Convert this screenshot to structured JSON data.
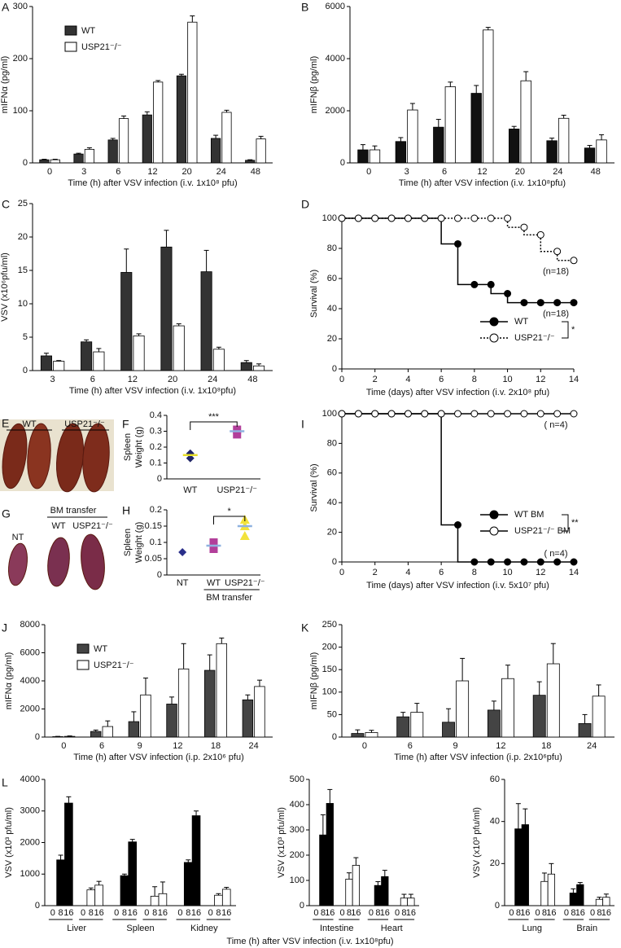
{
  "chart_data": [
    {
      "type": "bar",
      "panel": "A",
      "ylabel": "mIFNα (pg/ml)",
      "xlabel": "Time (h) after VSV infection (i.v. 1x10⁸ pfu)",
      "categories": [
        "0",
        "3",
        "6",
        "12",
        "20",
        "24",
        "48"
      ],
      "ylim": [
        0,
        300
      ],
      "yticks": [
        0,
        100,
        200,
        300
      ],
      "legend": "upper-left",
      "series": [
        {
          "name": "WT",
          "color": "#333333",
          "values": [
            6,
            17,
            44,
            92,
            167,
            47,
            5
          ],
          "errors": [
            1,
            1.5,
            3,
            6,
            3,
            6,
            1
          ]
        },
        {
          "name": "USP21⁻/⁻",
          "color": "#ffffff",
          "values": [
            6,
            26,
            85,
            155,
            270,
            97,
            46
          ],
          "errors": [
            1,
            3,
            5,
            3,
            12,
            4,
            5
          ]
        }
      ]
    },
    {
      "type": "bar",
      "panel": "B",
      "ylabel": "mIFNβ (pg/ml)",
      "xlabel": "Time (h) after VSV infection (i.v. 1x10⁸pfu)",
      "categories": [
        "0",
        "3",
        "6",
        "12",
        "20",
        "24",
        "48"
      ],
      "ylim": [
        0,
        6000
      ],
      "yticks": [
        0,
        2000,
        4000,
        6000
      ],
      "series": [
        {
          "color": "#111111",
          "values": [
            500,
            820,
            1370,
            2670,
            1300,
            850,
            570
          ],
          "errors": [
            200,
            150,
            300,
            300,
            100,
            100,
            100
          ]
        },
        {
          "color": "#ffffff",
          "values": [
            500,
            2030,
            2920,
            5100,
            3150,
            1710,
            880
          ],
          "errors": [
            150,
            250,
            180,
            100,
            350,
            120,
            200
          ]
        }
      ]
    },
    {
      "type": "bar",
      "panel": "C",
      "ylabel": "VSV (x10⁶pfu/ml)",
      "xlabel": "Time (h) after VSV infection (i.v. 1x10⁸pfu)",
      "categories": [
        "3",
        "6",
        "12",
        "20",
        "24",
        "48"
      ],
      "ylim": [
        0,
        25
      ],
      "yticks": [
        0,
        5,
        10,
        15,
        20,
        25
      ],
      "series": [
        {
          "color": "#333333",
          "values": [
            2.2,
            4.3,
            14.7,
            18.5,
            14.8,
            1.2
          ],
          "errors": [
            0.4,
            0.3,
            3.5,
            2.5,
            3.2,
            0.3
          ]
        },
        {
          "color": "#ffffff",
          "values": [
            1.4,
            2.8,
            5.2,
            6.7,
            3.2,
            0.7
          ],
          "errors": [
            0.1,
            0.5,
            0.3,
            0.3,
            0.3,
            0.3
          ]
        }
      ]
    },
    {
      "type": "survival",
      "panel": "D",
      "ylabel": "Survival (%)",
      "xlabel": "Time (days) after VSV infection (i.v. 2x10⁸ pfu)",
      "x": [
        0,
        1,
        2,
        3,
        4,
        5,
        6,
        7,
        8,
        9,
        10,
        11,
        12,
        13,
        14
      ],
      "xlim": [
        0,
        14
      ],
      "xticks": [
        0,
        2,
        4,
        6,
        8,
        10,
        12,
        14
      ],
      "ylim": [
        0,
        100
      ],
      "yticks": [
        0,
        20,
        40,
        60,
        80,
        100
      ],
      "legend": "lower-right",
      "annotations": [
        "(n=18)",
        "(n=18)",
        "*"
      ],
      "series": [
        {
          "name": "WT",
          "color": "#000000",
          "marker": "filled",
          "linestyle": "solid",
          "values": [
            100,
            100,
            100,
            100,
            100,
            100,
            100,
            83,
            56,
            56,
            50,
            44,
            44,
            44,
            44
          ]
        },
        {
          "name": "USP21⁻/⁻",
          "color": "#000000",
          "marker": "open",
          "linestyle": "dotted",
          "values": [
            100,
            100,
            100,
            100,
            100,
            100,
            100,
            100,
            100,
            100,
            100,
            94,
            89,
            78,
            72
          ]
        }
      ]
    },
    {
      "type": "dot",
      "panel": "F",
      "ylabel": [
        "Spleen",
        "Weight (g)"
      ],
      "ylim": [
        0,
        0.4
      ],
      "yticks": [
        0,
        0.1,
        0.2,
        0.3,
        0.4
      ],
      "significance": "***",
      "categories": [
        "WT",
        "USP21⁻/⁻"
      ],
      "groups": [
        {
          "marker": "diamond",
          "color": "#1f2466",
          "mean_color": "#e6de2a",
          "points": [
            0.13,
            0.16
          ],
          "mean": 0.15
        },
        {
          "marker": "square",
          "color": "#b23f9a",
          "mean_color": "#8fb2e0",
          "points": [
            0.28,
            0.31
          ],
          "mean": 0.3
        }
      ]
    },
    {
      "type": "dot",
      "panel": "H",
      "ylabel": [
        "Spleen",
        "Weight (g)"
      ],
      "ylim": [
        0,
        0.2
      ],
      "yticks": [
        0,
        0.05,
        0.1,
        0.15,
        0.2
      ],
      "significance": "*",
      "categories": [
        "NT",
        "WT",
        "USP21⁻/⁻"
      ],
      "group_label": "BM transfer",
      "groups": [
        {
          "marker": "diamond",
          "color": "#2a2f8a",
          "points": [
            0.07
          ]
        },
        {
          "marker": "square",
          "color": "#b23f9a",
          "mean_color": "#8fb2e0",
          "points": [
            0.08,
            0.1
          ],
          "mean": 0.09
        },
        {
          "marker": "triangle",
          "color": "#f2e23a",
          "mean_color": "#8fb2e0",
          "points": [
            0.12,
            0.15,
            0.17
          ],
          "mean": 0.15
        }
      ]
    },
    {
      "type": "survival",
      "panel": "I",
      "ylabel": "Survival (%)",
      "xlabel": "Time (days) after VSV infection (i.v. 5x10⁷ pfu)",
      "x": [
        0,
        1,
        2,
        3,
        4,
        5,
        6,
        7,
        8,
        9,
        10,
        11,
        12,
        13,
        14
      ],
      "xlim": [
        0,
        14
      ],
      "xticks": [
        0,
        2,
        4,
        6,
        8,
        10,
        12,
        14
      ],
      "ylim": [
        0,
        100
      ],
      "yticks": [
        0,
        20,
        40,
        60,
        80,
        100
      ],
      "legend": "lower-right",
      "annotations": [
        "( n=4)",
        "( n=4)",
        "**"
      ],
      "series": [
        {
          "name": "WT BM",
          "color": "#000000",
          "marker": "filled",
          "linestyle": "solid",
          "values": [
            100,
            100,
            100,
            100,
            100,
            100,
            100,
            25,
            0,
            0,
            0,
            0,
            0,
            0,
            0
          ]
        },
        {
          "name": "USP21⁻/⁻ BM",
          "color": "#000000",
          "marker": "open",
          "linestyle": "solid",
          "values": [
            100,
            100,
            100,
            100,
            100,
            100,
            100,
            100,
            100,
            100,
            100,
            100,
            100,
            100,
            100
          ]
        }
      ]
    },
    {
      "type": "bar",
      "panel": "J",
      "ylabel": "mIFNα (pg/ml)",
      "xlabel": "Time (h) after VSV infection (i.p. 2x10⁶ pfu)",
      "categories": [
        "0",
        "6",
        "9",
        "12",
        "18",
        "24"
      ],
      "ylim": [
        0,
        8000
      ],
      "yticks": [
        0,
        2000,
        4000,
        6000,
        8000
      ],
      "legend": "upper-left",
      "series": [
        {
          "name": "WT",
          "color": "#444444",
          "values": [
            30,
            400,
            1100,
            2350,
            4750,
            2650
          ],
          "errors": [
            20,
            100,
            700,
            500,
            1100,
            350
          ]
        },
        {
          "name": "USP21⁻/⁻",
          "color": "#ffffff",
          "values": [
            50,
            750,
            3000,
            4850,
            6650,
            3600
          ],
          "errors": [
            30,
            400,
            1200,
            1800,
            400,
            450
          ]
        }
      ]
    },
    {
      "type": "bar",
      "panel": "K",
      "ylabel": "mIFNβ (pg/ml)",
      "xlabel": "Time (h) after VSV infection (i.p. 2x10⁶pfu)",
      "categories": [
        "0",
        "6",
        "9",
        "12",
        "18",
        "24"
      ],
      "ylim": [
        0,
        250
      ],
      "yticks": [
        0,
        50,
        100,
        150,
        200,
        250
      ],
      "series": [
        {
          "color": "#444444",
          "values": [
            8,
            45,
            33,
            60,
            93,
            30
          ],
          "errors": [
            8,
            10,
            30,
            20,
            30,
            20
          ]
        },
        {
          "color": "#ffffff",
          "values": [
            10,
            55,
            125,
            130,
            163,
            91
          ],
          "errors": [
            5,
            20,
            50,
            30,
            45,
            25
          ]
        }
      ]
    },
    {
      "type": "grouped",
      "panel": "L",
      "ylabel": "VSV (x10³ pfu/ml)",
      "xlabel": "Time (h) after VSV infection (i.v. 1x10⁸pfu)",
      "ylim": [
        0,
        4000
      ],
      "yticks": [
        0,
        1000,
        2000,
        3000,
        4000
      ],
      "subcategories": [
        "0",
        "8",
        "16"
      ],
      "colors": [
        "#000000",
        "#ffffff"
      ],
      "groups": [
        {
          "label": "Liver",
          "values": [
            [
              0,
              1450,
              3250
            ],
            [
              0,
              500,
              650
            ]
          ],
          "errors": [
            [
              0,
              150,
              200
            ],
            [
              0,
              60,
              120
            ]
          ]
        },
        {
          "label": "Spleen",
          "values": [
            [
              0,
              950,
              2020
            ],
            [
              0,
              300,
              380
            ]
          ],
          "errors": [
            [
              0,
              50,
              80
            ],
            [
              0,
              300,
              370
            ]
          ]
        },
        {
          "label": "Kidney",
          "values": [
            [
              0,
              1370,
              2850
            ],
            [
              0,
              330,
              520
            ]
          ],
          "errors": [
            [
              0,
              80,
              150
            ],
            [
              0,
              50,
              60
            ]
          ]
        }
      ]
    },
    {
      "type": "grouped",
      "ylabel": "VSV (x10³ pfu/ml)",
      "ylim": [
        0,
        500
      ],
      "yticks": [
        0,
        100,
        200,
        300,
        400,
        500
      ],
      "subcategories": [
        "0",
        "8",
        "16"
      ],
      "colors": [
        "#000000",
        "#ffffff"
      ],
      "groups": [
        {
          "label": "Intestine",
          "values": [
            [
              0,
              280,
              405
            ],
            [
              0,
              105,
              160
            ]
          ],
          "errors": [
            [
              0,
              80,
              55
            ],
            [
              0,
              25,
              30
            ]
          ]
        },
        {
          "label": "Heart",
          "values": [
            [
              0,
              80,
              115
            ],
            [
              0,
              30,
              30
            ]
          ],
          "errors": [
            [
              0,
              15,
              25
            ],
            [
              0,
              15,
              15
            ]
          ]
        }
      ]
    },
    {
      "type": "grouped",
      "ylabel": "VSV (x10³ pfu/ml)",
      "ylim": [
        0,
        60
      ],
      "yticks": [
        0,
        20,
        40,
        60
      ],
      "subcategories": [
        "0",
        "8",
        "16"
      ],
      "colors": [
        "#000000",
        "#ffffff"
      ],
      "groups": [
        {
          "label": "Lung",
          "values": [
            [
              0,
              36.5,
              38.5
            ],
            [
              0,
              11.5,
              15
            ]
          ],
          "errors": [
            [
              0,
              12,
              7.5
            ],
            [
              0,
              4,
              5
            ]
          ]
        },
        {
          "label": "Brain",
          "values": [
            [
              0,
              6,
              10
            ],
            [
              0,
              3,
              4
            ]
          ],
          "errors": [
            [
              0,
              2,
              1
            ],
            [
              0,
              1,
              1.5
            ]
          ]
        }
      ]
    }
  ],
  "figure_panels": [
    {
      "panel": "E",
      "labels": [
        "WT",
        "USP21⁻/⁻"
      ]
    },
    {
      "panel": "G",
      "header": "BM transfer",
      "labels": [
        "NT",
        "WT",
        "USP21⁻/⁻"
      ]
    }
  ]
}
